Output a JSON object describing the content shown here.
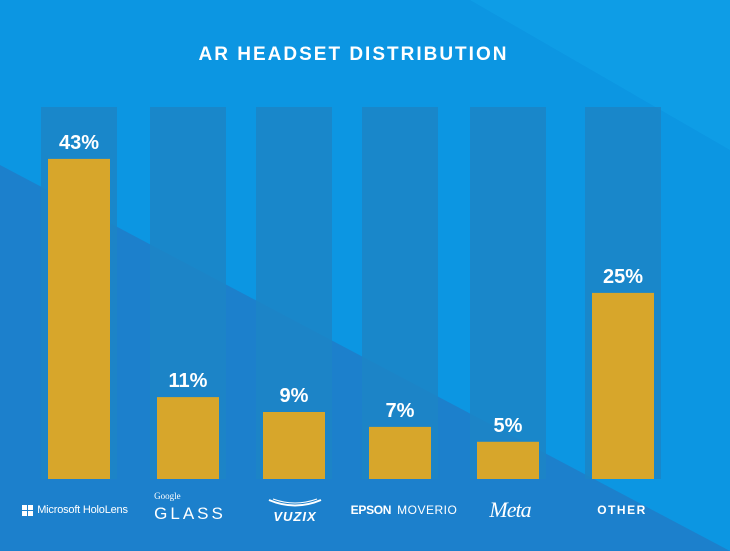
{
  "chart_data": {
    "type": "bar",
    "title": "AR HEADSET DISTRIBUTION",
    "categories": [
      "Microsoft HoloLens",
      "Google GLASS",
      "VUZIX",
      "EPSON MOVERIO",
      "Meta",
      "OTHER"
    ],
    "values": [
      43,
      11,
      9,
      7,
      5,
      25
    ],
    "value_labels": [
      "43%",
      "11%",
      "9%",
      "7%",
      "5%",
      "25%"
    ],
    "ylim": [
      0,
      45
    ],
    "unit": "%",
    "xlabel": "",
    "ylabel": ""
  },
  "logos": {
    "microsoft": "Microsoft HoloLens",
    "google_small": "Google",
    "google_big": "GLASS",
    "vuzix": "VUZIX",
    "epson": "EPSON",
    "moverio": "MOVERIO",
    "meta": "Meta",
    "other": "OTHER"
  },
  "colors": {
    "background": "#0c96e2",
    "background_dark": "#1c80cc",
    "track": "#1c85c6",
    "bar": "#d7a62b",
    "text": "#ffffff"
  }
}
